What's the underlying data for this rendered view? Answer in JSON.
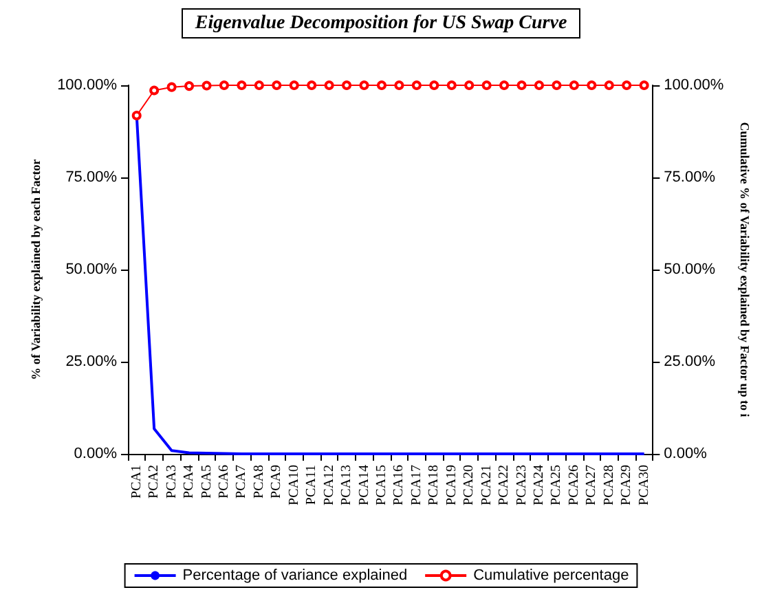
{
  "chart_data": {
    "type": "line",
    "title": "Eigenvalue Decomposition for US Swap Curve",
    "ylabel": "% of Variability explained by each Factor",
    "y2label": "Cumulative % of Variability explained by Factor up to i",
    "categories": [
      "PCA1",
      "PCA2",
      "PCA3",
      "PCA4",
      "PCA5",
      "PCA6",
      "PCA7",
      "PCA8",
      "PCA9",
      "PCA10",
      "PCA11",
      "PCA12",
      "PCA13",
      "PCA14",
      "PCA15",
      "PCA16",
      "PCA17",
      "PCA18",
      "PCA19",
      "PCA20",
      "PCA21",
      "PCA22",
      "PCA23",
      "PCA24",
      "PCA25",
      "PCA26",
      "PCA27",
      "PCA28",
      "PCA29",
      "PCA30"
    ],
    "series": [
      {
        "name": "Percentage of variance explained",
        "color": "#0000ff",
        "marker": "none",
        "values": [
          91.8,
          6.8,
          0.9,
          0.3,
          0.2,
          0.1,
          0,
          0,
          0,
          0,
          0,
          0,
          0,
          0,
          0,
          0,
          0,
          0,
          0,
          0,
          0,
          0,
          0,
          0,
          0,
          0,
          0,
          0,
          0,
          0
        ]
      },
      {
        "name": "Cumulative percentage",
        "color": "#ff0000",
        "marker": "circle",
        "axis": "y2",
        "values": [
          91.8,
          98.6,
          99.5,
          99.8,
          99.9,
          100,
          100,
          100,
          100,
          100,
          100,
          100,
          100,
          100,
          100,
          100,
          100,
          100,
          100,
          100,
          100,
          100,
          100,
          100,
          100,
          100,
          100,
          100,
          100,
          100
        ]
      }
    ],
    "ylim": [
      0,
      100
    ],
    "yticks": [
      {
        "value": 0,
        "label": "0.00%"
      },
      {
        "value": 25,
        "label": "25.00%"
      },
      {
        "value": 50,
        "label": "50.00%"
      },
      {
        "value": 75,
        "label": "75.00%"
      },
      {
        "value": 100,
        "label": "100.00%"
      }
    ],
    "y2lim": [
      0,
      100
    ],
    "y2ticks": [
      {
        "value": 0,
        "label": "0.00%"
      },
      {
        "value": 25,
        "label": "25.00%"
      },
      {
        "value": 50,
        "label": "50.00%"
      },
      {
        "value": 75,
        "label": "75.00%"
      },
      {
        "value": 100,
        "label": "100.00%"
      }
    ],
    "grid": false,
    "legend": "bottom"
  }
}
